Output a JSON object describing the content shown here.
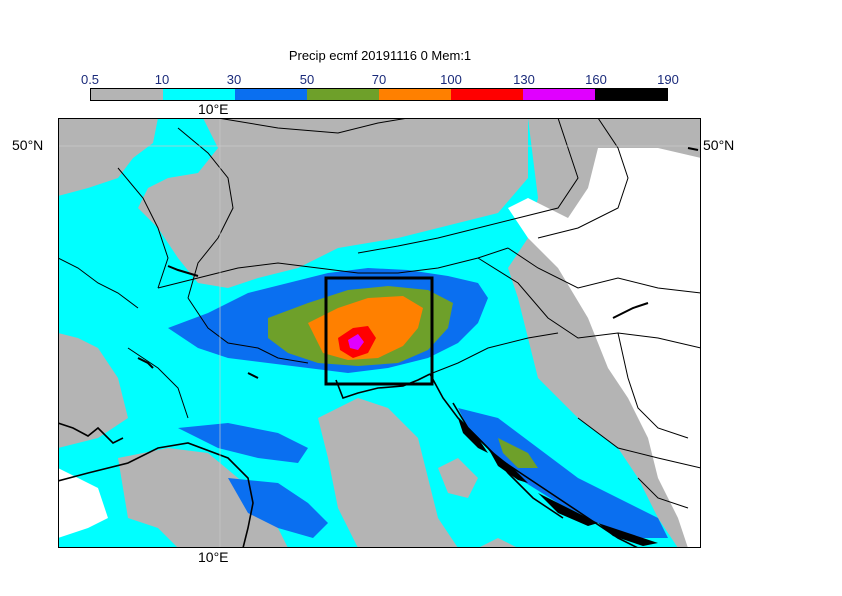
{
  "title": "Precip ecmf 20191116 0 Mem:1",
  "colorbar": {
    "ticks": [
      "0.5",
      "10",
      "30",
      "50",
      "70",
      "100",
      "130",
      "160",
      "190"
    ],
    "colors": [
      "#b4b4b4",
      "#00ffff",
      "#0a6ff0",
      "#6ea02a",
      "#ff8000",
      "#ff0000",
      "#e000ff",
      "#000000"
    ]
  },
  "axes": {
    "lon_top": "10°E",
    "lon_bottom": "10°E",
    "lat_left": "50°N",
    "lat_right": "50°N"
  }
}
